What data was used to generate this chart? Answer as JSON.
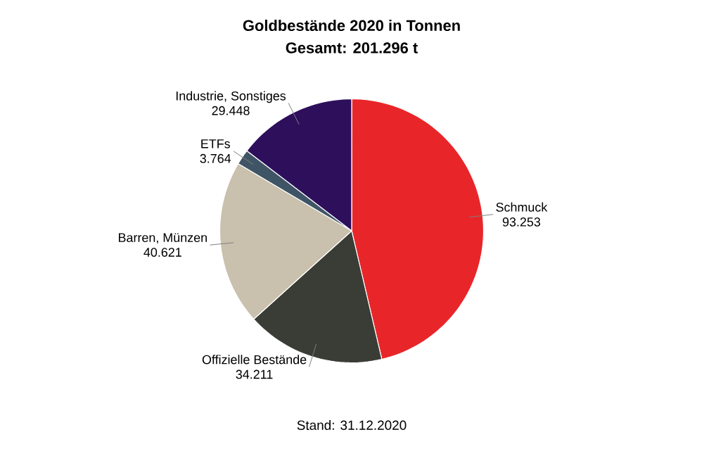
{
  "chart_data": {
    "type": "pie",
    "title": "Goldbestände 2020 in Tonnen",
    "subtitle": "Gesamt: 201.296 t",
    "categories": [
      "Schmuck",
      "Offizielle Bestände",
      "Barren, Münzen",
      "ETFs",
      "Industrie, Sonstiges"
    ],
    "values": [
      93253,
      34211,
      40621,
      3764,
      29448
    ],
    "value_labels": [
      "93.253",
      "34.211",
      "40.621",
      "3.764",
      "29.448"
    ],
    "colors": [
      "#e8262a",
      "#3a3d35",
      "#c9c0ad",
      "#3f5566",
      "#2e0f5c"
    ],
    "annotations": [
      "Stand: 31.12.2020"
    ]
  }
}
